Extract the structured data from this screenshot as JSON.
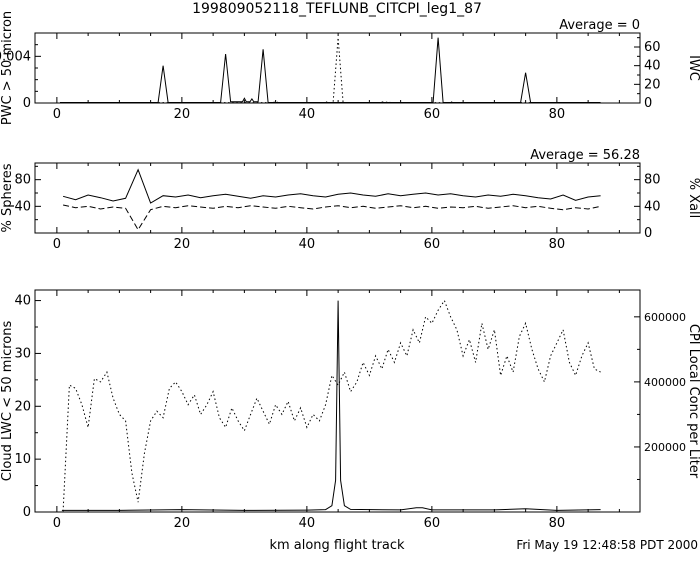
{
  "title": "199809052118_TEFLUNB_CITCPI_leg1_87",
  "footer": {
    "xlabel": "km along flight track",
    "timestamp": "Fri May 19 12:48:58 PDT 2000"
  },
  "colors": {
    "foreground": "#000000",
    "background": "#ffffff"
  },
  "chart_data": [
    {
      "type": "line",
      "annotation": "Average = 0",
      "xlim": [
        -3.5,
        93.3
      ],
      "xticks": [
        0,
        20,
        40,
        60,
        80
      ],
      "xminor_step": 5,
      "left": {
        "label": "PWC > 50 micron",
        "lim": [
          0,
          0.006
        ],
        "ticks": [
          0,
          0.004
        ],
        "minor": [
          0.001,
          0.002,
          0.003,
          0.005
        ]
      },
      "right": {
        "label": "IWC",
        "lim": [
          0,
          75
        ],
        "ticks": [
          0,
          20,
          40,
          60
        ],
        "minor": [
          10,
          30,
          50,
          70
        ]
      },
      "series": [
        {
          "name": "PWC > 50 micron",
          "axis": "left",
          "style": "solid",
          "x": [
            0.5,
            16.2,
            17,
            17.8,
            26.2,
            27,
            27.8,
            29.7,
            30,
            30.3,
            30.9,
            31.2,
            31.5,
            32.2,
            33,
            33.8,
            60.2,
            61,
            61.8,
            74.2,
            75,
            75.8,
            87
          ],
          "y": [
            4e-05,
            4e-05,
            0.0032,
            4e-05,
            4e-05,
            0.0042,
            0.0001,
            0.0001,
            0.0004,
            0.0001,
            0.0001,
            0.00035,
            0.0001,
            0.0001,
            0.0046,
            4e-05,
            4e-05,
            0.0056,
            4e-05,
            4e-05,
            0.0026,
            4e-05,
            4e-05
          ]
        },
        {
          "name": "IWC",
          "axis": "right",
          "style": "dotted",
          "x": [
            0.5,
            34.6,
            35,
            35.4,
            42.6,
            43,
            43.4,
            44.2,
            45,
            45.8,
            51.6,
            52,
            52.6,
            53,
            53.4,
            62.6,
            63,
            63.4,
            87
          ],
          "y": [
            0.4,
            0.4,
            1.6,
            0.4,
            0.4,
            1.3,
            0.4,
            0.4,
            70,
            0.4,
            0.4,
            1.2,
            0.4,
            1.5,
            0.4,
            0.4,
            1.3,
            0.4,
            0.4
          ]
        }
      ]
    },
    {
      "type": "line",
      "annotation": "Average = 56.28",
      "xlim": [
        -3.5,
        93.3
      ],
      "xticks": [
        0,
        20,
        40,
        60,
        80
      ],
      "xminor_step": 5,
      "left": {
        "label": "% Spheres",
        "lim": [
          0,
          105
        ],
        "ticks": [
          40,
          80
        ],
        "minor": [
          20,
          60,
          100
        ]
      },
      "right": {
        "label": "% Xall",
        "lim": [
          0,
          105
        ],
        "ticks": [
          0,
          40,
          80
        ],
        "minor": [
          20,
          60,
          100
        ]
      },
      "series": [
        {
          "name": "% Spheres",
          "axis": "left",
          "style": "solid",
          "x0": 1,
          "dx": 2,
          "y": [
            55,
            50,
            57,
            53,
            48,
            52,
            95,
            45,
            56,
            54,
            57,
            53,
            56,
            58,
            55,
            52,
            56,
            54,
            57,
            59,
            56,
            54,
            58,
            60,
            57,
            55,
            59,
            56,
            58,
            60,
            57,
            59,
            56,
            54,
            57,
            55,
            58,
            56,
            53,
            51,
            57,
            49,
            54,
            56
          ]
        },
        {
          "name": "% Xall",
          "axis": "right",
          "style": "dashed",
          "x0": 1,
          "dx": 2,
          "y": [
            42,
            38,
            40,
            36,
            39,
            37,
            5,
            35,
            40,
            38,
            41,
            39,
            37,
            40,
            38,
            41,
            39,
            37,
            40,
            38,
            36,
            39,
            41,
            38,
            40,
            37,
            39,
            41,
            38,
            40,
            37,
            39,
            38,
            40,
            37,
            39,
            41,
            38,
            40,
            37,
            35,
            38,
            36,
            40
          ]
        }
      ]
    },
    {
      "type": "line",
      "annotation": "",
      "xlim": [
        -3.5,
        93.3
      ],
      "xticks": [
        0,
        20,
        40,
        60,
        80
      ],
      "xminor_step": 5,
      "left": {
        "label": "Cloud LWC < 50 microns",
        "lim": [
          0,
          42
        ],
        "ticks": [
          0,
          10,
          20,
          30,
          40
        ],
        "minor": [
          5,
          15,
          25,
          35
        ]
      },
      "right": {
        "label": "CPI Local Conc per Liter",
        "lim": [
          0,
          682500
        ],
        "ticks": [
          200000,
          400000,
          600000
        ],
        "minor": [
          100000,
          300000,
          500000
        ]
      },
      "series": [
        {
          "name": "Cloud LWC",
          "axis": "left",
          "style": "solid",
          "x": [
            0.8,
            10,
            20,
            30,
            40,
            43,
            44,
            44.6,
            45,
            45.4,
            46,
            47,
            55,
            57.5,
            58.5,
            60,
            70,
            75,
            80,
            87
          ],
          "y": [
            0.3,
            0.3,
            0.45,
            0.3,
            0.35,
            0.45,
            1.2,
            6,
            40,
            6,
            1.2,
            0.5,
            0.4,
            0.8,
            0.8,
            0.4,
            0.4,
            0.6,
            0.3,
            0.45
          ]
        },
        {
          "name": "CPI Local Conc",
          "axis": "right",
          "style": "dotted",
          "x0": 1,
          "dx": 1,
          "y": [
            2000,
            390000,
            380000,
            330000,
            260000,
            410000,
            400000,
            430000,
            350000,
            300000,
            280000,
            120000,
            30000,
            180000,
            280000,
            310000,
            290000,
            380000,
            400000,
            370000,
            330000,
            360000,
            300000,
            330000,
            370000,
            290000,
            260000,
            320000,
            280000,
            250000,
            300000,
            350000,
            310000,
            270000,
            330000,
            300000,
            340000,
            280000,
            320000,
            260000,
            300000,
            280000,
            330000,
            420000,
            390000,
            430000,
            370000,
            400000,
            460000,
            420000,
            480000,
            440000,
            500000,
            460000,
            520000,
            480000,
            560000,
            520000,
            600000,
            580000,
            620000,
            650000,
            600000,
            560000,
            480000,
            530000,
            460000,
            580000,
            500000,
            560000,
            420000,
            480000,
            430000,
            540000,
            580000,
            500000,
            440000,
            400000,
            480000,
            520000,
            560000,
            460000,
            420000,
            480000,
            520000,
            440000,
            430000
          ]
        }
      ]
    }
  ]
}
